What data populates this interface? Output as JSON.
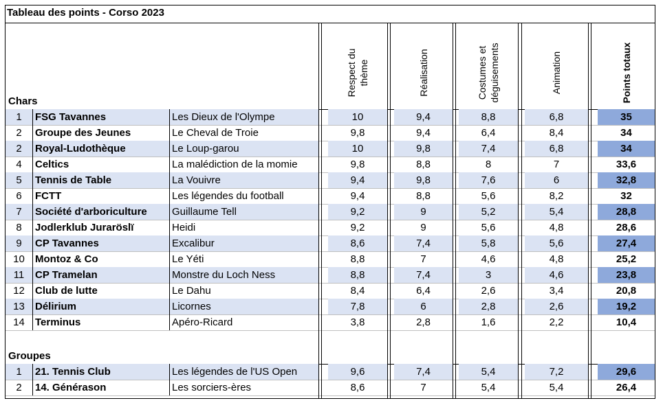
{
  "title": "Tableau des points - Corso 2023",
  "columns": {
    "respect": "Respect du thème",
    "realisation": "Réalisation",
    "costumes": "Costumes et déguisements",
    "animation": "Animation",
    "total": "Points totaux"
  },
  "sections": [
    {
      "label": "Chars",
      "rows": [
        {
          "rank": "1",
          "group": "FSG Tavannes",
          "theme": "Les Dieux de l'Olympe",
          "respect": "10",
          "realisation": "9,4",
          "costumes": "8,8",
          "animation": "6,8",
          "total": "35"
        },
        {
          "rank": "2",
          "group": "Groupe des Jeunes",
          "theme": "Le Cheval de Troie",
          "respect": "9,8",
          "realisation": "9,4",
          "costumes": "6,4",
          "animation": "8,4",
          "total": "34"
        },
        {
          "rank": "2",
          "group": "Royal-Ludothèque",
          "theme": "Le Loup-garou",
          "respect": "10",
          "realisation": "9,8",
          "costumes": "7,4",
          "animation": "6,8",
          "total": "34"
        },
        {
          "rank": "4",
          "group": "Celtics",
          "theme": "La malédiction de la momie",
          "respect": "9,8",
          "realisation": "8,8",
          "costumes": "8",
          "animation": "7",
          "total": "33,6"
        },
        {
          "rank": "5",
          "group": "Tennis de Table",
          "theme": "La Vouivre",
          "respect": "9,4",
          "realisation": "9,8",
          "costumes": "7,6",
          "animation": "6",
          "total": "32,8"
        },
        {
          "rank": "6",
          "group": "FCTT",
          "theme": "Les légendes du football",
          "respect": "9,4",
          "realisation": "8,8",
          "costumes": "5,6",
          "animation": "8,2",
          "total": "32"
        },
        {
          "rank": "7",
          "group": "Société d'arboriculture",
          "theme": "Guillaume Tell",
          "respect": "9,2",
          "realisation": "9",
          "costumes": "5,2",
          "animation": "5,4",
          "total": "28,8"
        },
        {
          "rank": "8",
          "group": "Jodlerklub Juraröslï",
          "theme": "Heidi",
          "respect": "9,2",
          "realisation": "9",
          "costumes": "5,6",
          "animation": "4,8",
          "total": "28,6"
        },
        {
          "rank": "9",
          "group": "CP Tavannes",
          "theme": "Excalibur",
          "respect": "8,6",
          "realisation": "7,4",
          "costumes": "5,8",
          "animation": "5,6",
          "total": "27,4"
        },
        {
          "rank": "10",
          "group": "Montoz & Co",
          "theme": "Le Yéti",
          "respect": "8,8",
          "realisation": "7",
          "costumes": "4,6",
          "animation": "4,8",
          "total": "25,2"
        },
        {
          "rank": "11",
          "group": "CP Tramelan",
          "theme": "Monstre du Loch Ness",
          "respect": "8,8",
          "realisation": "7,4",
          "costumes": "3",
          "animation": "4,6",
          "total": "23,8"
        },
        {
          "rank": "12",
          "group": "Club de lutte",
          "theme": "Le Dahu",
          "respect": "8,4",
          "realisation": "6,4",
          "costumes": "2,6",
          "animation": "3,4",
          "total": "20,8"
        },
        {
          "rank": "13",
          "group": "Délirium",
          "theme": "Licornes",
          "respect": "7,8",
          "realisation": "6",
          "costumes": "2,8",
          "animation": "2,6",
          "total": "19,2"
        },
        {
          "rank": "14",
          "group": "Terminus",
          "theme": "Apéro-Ricard",
          "respect": "3,8",
          "realisation": "2,8",
          "costumes": "1,6",
          "animation": "2,2",
          "total": "10,4"
        }
      ]
    },
    {
      "label": "Groupes",
      "rows": [
        {
          "rank": "1",
          "group": "21. Tennis Club",
          "theme": "Les légendes de l'US Open",
          "respect": "9,6",
          "realisation": "7,4",
          "costumes": "5,4",
          "animation": "7,2",
          "total": "29,6"
        },
        {
          "rank": "2",
          "group": "14. Générason",
          "theme": "Les sorciers-ères",
          "respect": "8,6",
          "realisation": "7",
          "costumes": "5,4",
          "animation": "5,4",
          "total": "26,4"
        }
      ]
    }
  ],
  "colors": {
    "band": "#dbe3f3",
    "band_total": "#8ea9db",
    "grid": "#000000"
  }
}
